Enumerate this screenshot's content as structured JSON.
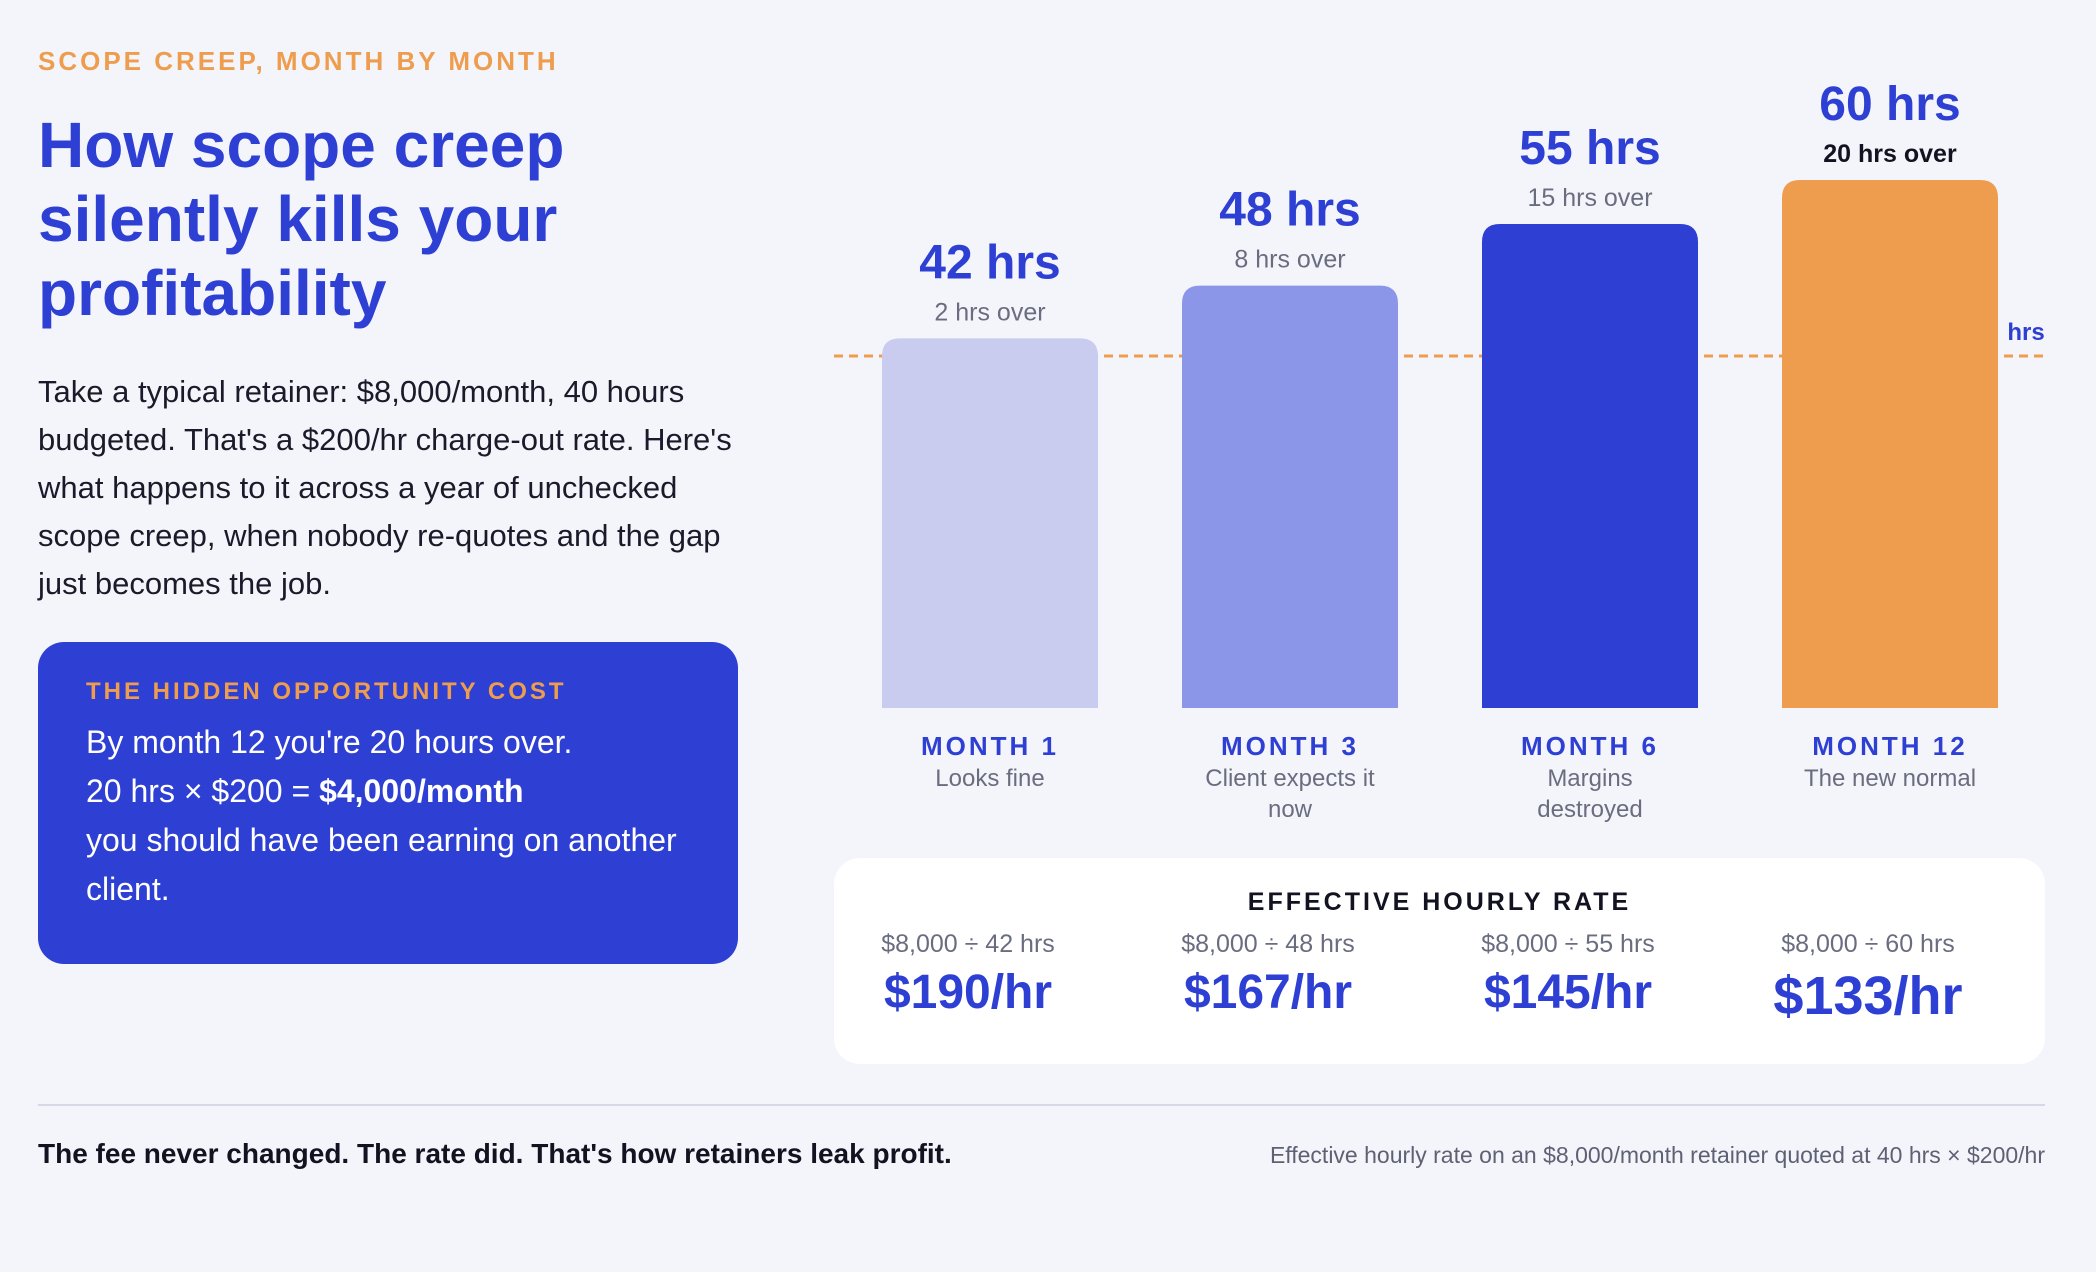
{
  "eyebrow": "SCOPE CREEP, MONTH BY MONTH",
  "title": "How scope creep silently kills your profitability",
  "intro": "Take a typical retainer: $8,000/month, 40 hours budgeted. That's a $200/hr charge-out rate. Here's what happens to it across a year of unchecked scope creep, when nobody re-quotes and the gap just becomes the job.",
  "callout": {
    "heading": "THE HIDDEN OPPORTUNITY COST",
    "line1": "By month 12 you're 20 hours over.",
    "line2_prefix": "20 hrs × $200 = ",
    "line2_bold": "$4,000/month",
    "line3": "you should have been earning on another client."
  },
  "chart_data": {
    "type": "bar",
    "categories": [
      "MONTH 1",
      "MONTH 3",
      "MONTH 6",
      "MONTH 12"
    ],
    "sublabels": [
      "Looks fine",
      "Client expects it now",
      "Margins destroyed",
      "The new normal"
    ],
    "values": [
      42,
      48,
      55,
      60
    ],
    "value_labels": [
      "42 hrs",
      "48 hrs",
      "55 hrs",
      "60 hrs"
    ],
    "over_labels": [
      "2 hrs over",
      "8 hrs over",
      "15 hrs over",
      "20 hrs over"
    ],
    "unit": "hrs",
    "reference_line": {
      "value": 40,
      "label": "hrs",
      "color": "#ee9d4f"
    },
    "colors": [
      "#c9cbef",
      "#8b96e8",
      "#2e3fd4",
      "#ee9d4f"
    ],
    "ylim": [
      0,
      62
    ]
  },
  "rates": {
    "title": "EFFECTIVE HOURLY RATE",
    "items": [
      {
        "formula": "$8,000 ÷ 42 hrs",
        "value": "$190/hr"
      },
      {
        "formula": "$8,000 ÷ 48 hrs",
        "value": "$167/hr"
      },
      {
        "formula": "$8,000 ÷ 55 hrs",
        "value": "$145/hr"
      },
      {
        "formula": "$8,000 ÷ 60 hrs",
        "value": "$133/hr"
      }
    ]
  },
  "footer": {
    "left": "The fee never changed. The rate did. That's how retainers leak profit.",
    "right": "Effective hourly rate on an $8,000/month retainer quoted at 40 hrs × $200/hr"
  }
}
